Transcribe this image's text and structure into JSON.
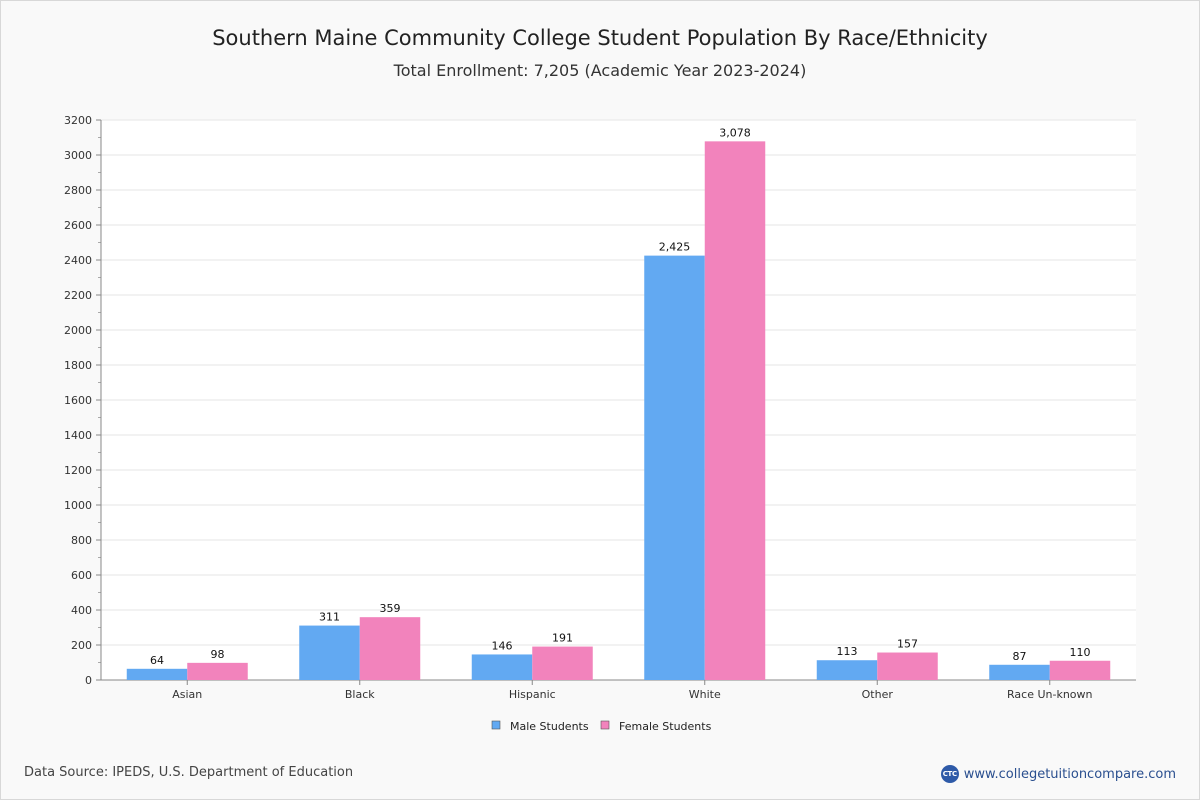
{
  "header": {
    "title": "Southern Maine Community College Student Population By Race/Ethnicity",
    "subtitle": "Total Enrollment: 7,205 (Academic Year 2023-2024)"
  },
  "footer": {
    "source": "Data Source: IPEDS, U.S. Department of Education",
    "site": "www.collegetuitioncompare.com",
    "logo_text": "CTC"
  },
  "colors": {
    "male": "#62a9f2",
    "female": "#f283bc"
  },
  "chart_data": {
    "type": "bar",
    "title": "Southern Maine Community College Student Population By Race/Ethnicity",
    "subtitle": "Total Enrollment: 7,205 (Academic Year 2023-2024)",
    "categories": [
      "Asian",
      "Black",
      "Hispanic",
      "White",
      "Other",
      "Race Un-known"
    ],
    "series": [
      {
        "name": "Male Students",
        "values": [
          64,
          311,
          146,
          2425,
          113,
          87
        ],
        "labels": [
          "64",
          "311",
          "146",
          "2,425",
          "113",
          "87"
        ]
      },
      {
        "name": "Female Students",
        "values": [
          98,
          359,
          191,
          3078,
          157,
          110
        ],
        "labels": [
          "98",
          "359",
          "191",
          "3,078",
          "157",
          "110"
        ]
      }
    ],
    "ylim": [
      0,
      3200
    ],
    "yticks": [
      0,
      200,
      400,
      600,
      800,
      1000,
      1200,
      1400,
      1600,
      1800,
      2000,
      2200,
      2400,
      2600,
      2800,
      3000,
      3200
    ],
    "grid": true,
    "legend": "bottom-center"
  }
}
